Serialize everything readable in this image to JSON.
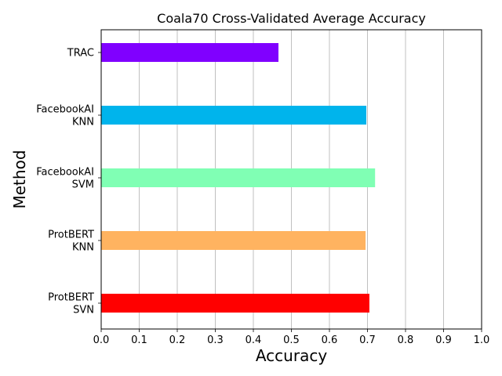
{
  "chart_data": {
    "type": "bar",
    "orientation": "horizontal",
    "title": "Coala70 Cross-Validated Average Accuracy",
    "xlabel": "Accuracy",
    "ylabel": "Method",
    "xlim": [
      0.0,
      1.0
    ],
    "xticks": [
      "0.0",
      "0.1",
      "0.2",
      "0.3",
      "0.4",
      "0.5",
      "0.6",
      "0.7",
      "0.8",
      "0.9",
      "1.0"
    ],
    "grid": "vertical",
    "categories": [
      [
        "ProtBERT",
        "SVN"
      ],
      [
        "ProtBERT",
        "KNN"
      ],
      [
        "FacebookAI",
        "SVM"
      ],
      [
        "FacebookAI",
        "KNN"
      ],
      [
        "TRAC"
      ]
    ],
    "values": [
      0.705,
      0.695,
      0.72,
      0.697,
      0.466
    ],
    "colors": [
      "#ff0000",
      "#ffb360",
      "#80ffb4",
      "#00b4ec",
      "#8000ff"
    ]
  }
}
